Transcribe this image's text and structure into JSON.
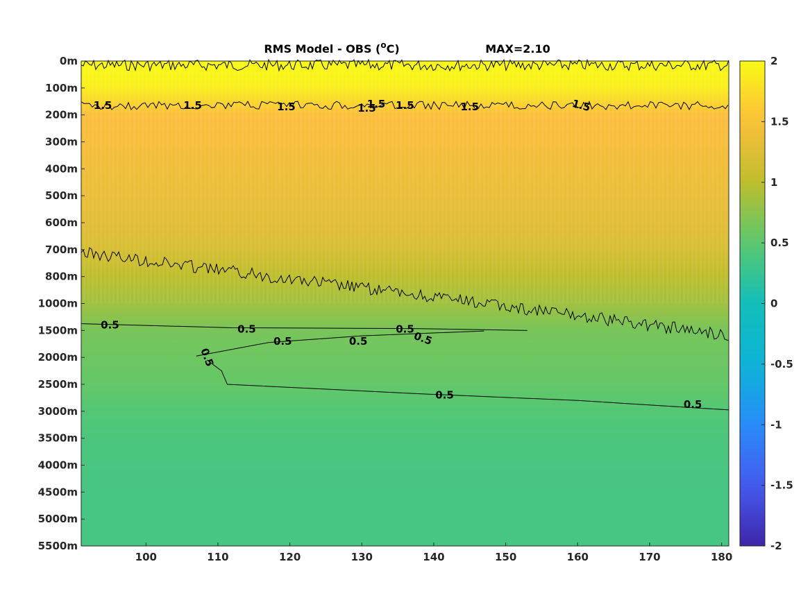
{
  "chart_data": {
    "type": "heatmap",
    "title": "RMS Model - OBS (°C)",
    "title_prefix": "RMS Model - OBS (",
    "title_unit_sup": "o",
    "title_unit_suffix": "C)",
    "max_label": "MAX=2.10",
    "xlabel": "",
    "ylabel": "",
    "xlim": [
      91,
      181
    ],
    "x_ticks": [
      100,
      110,
      120,
      130,
      140,
      150,
      160,
      170,
      180
    ],
    "y_tick_labels": [
      "0m",
      "100m",
      "200m",
      "300m",
      "400m",
      "500m",
      "600m",
      "700m",
      "800m",
      "1000m",
      "1500m",
      "2000m",
      "2500m",
      "3000m",
      "3500m",
      "4000m",
      "4500m",
      "5000m",
      "5500m"
    ],
    "colorbar": {
      "range": [
        -2,
        2
      ],
      "colormap": "parula",
      "tick_labels": [
        "2",
        "1.5",
        "1",
        "0.5",
        "0",
        "-0.5",
        "-1",
        "-1.5",
        "-2"
      ],
      "tick_values": [
        2,
        1.5,
        1,
        0.5,
        0,
        -0.5,
        -1,
        -1.5,
        -2
      ]
    },
    "depth_profile": [
      {
        "depth": "0m",
        "value": 2.0
      },
      {
        "depth": "100m",
        "value": 1.9
      },
      {
        "depth": "200m",
        "value": 1.5
      },
      {
        "depth": "300m",
        "value": 1.45
      },
      {
        "depth": "400m",
        "value": 1.4
      },
      {
        "depth": "500m",
        "value": 1.35
      },
      {
        "depth": "600m",
        "value": 1.3
      },
      {
        "depth": "700m",
        "value": 1.2
      },
      {
        "depth": "800m",
        "value": 1.0
      },
      {
        "depth": "1000m",
        "value": 0.85
      },
      {
        "depth": "1500m",
        "value": 0.65
      },
      {
        "depth": "2000m",
        "value": 0.6
      },
      {
        "depth": "2500m",
        "value": 0.55
      },
      {
        "depth": "3000m",
        "value": 0.45
      },
      {
        "depth": "3500m",
        "value": 0.4
      },
      {
        "depth": "4000m",
        "value": 0.38
      },
      {
        "depth": "4500m",
        "value": 0.37
      },
      {
        "depth": "5000m",
        "value": 0.37
      },
      {
        "depth": "5500m",
        "value": 0.37
      }
    ],
    "contour_labels": [
      {
        "text": "1.5",
        "x": 94,
        "depth_index": 1.65,
        "angle": 0
      },
      {
        "text": "1.5",
        "x": 106.5,
        "depth_index": 1.65,
        "angle": 0
      },
      {
        "text": "1.5",
        "x": 119.5,
        "depth_index": 1.7,
        "angle": 0
      },
      {
        "text": "1.5",
        "x": 132,
        "depth_index": 1.6,
        "angle": 0
      },
      {
        "text": "1.5",
        "x": 145,
        "depth_index": 1.7,
        "angle": 0
      },
      {
        "text": "1.5",
        "x": 160.5,
        "depth_index": 1.65,
        "angle": 15
      },
      {
        "text": "1.5",
        "x": 184.5,
        "depth_index": 1.75,
        "angle": 0
      },
      {
        "text": "1.5",
        "x": 197,
        "depth_index": 1.65,
        "angle": 0
      },
      {
        "text": "0.5",
        "x": 95,
        "depth_index": 9.8,
        "angle": 0
      },
      {
        "text": "0.5",
        "x": 114,
        "depth_index": 9.95,
        "angle": 0
      },
      {
        "text": "0.5",
        "x": 136,
        "depth_index": 9.95,
        "angle": 0
      },
      {
        "text": "0.5",
        "x": 119,
        "depth_index": 10.4,
        "angle": 0
      },
      {
        "text": "0.5",
        "x": 129.5,
        "depth_index": 10.4,
        "angle": 0
      },
      {
        "text": "0.5",
        "x": 138.5,
        "depth_index": 10.3,
        "angle": 20
      },
      {
        "text": "0.5",
        "x": 108.5,
        "depth_index": 11.0,
        "angle": 70
      },
      {
        "text": "0.5",
        "x": 141.5,
        "depth_index": 12.4,
        "angle": 0
      },
      {
        "text": "0.5",
        "x": 176,
        "depth_index": 12.75,
        "angle": 0
      }
    ]
  }
}
